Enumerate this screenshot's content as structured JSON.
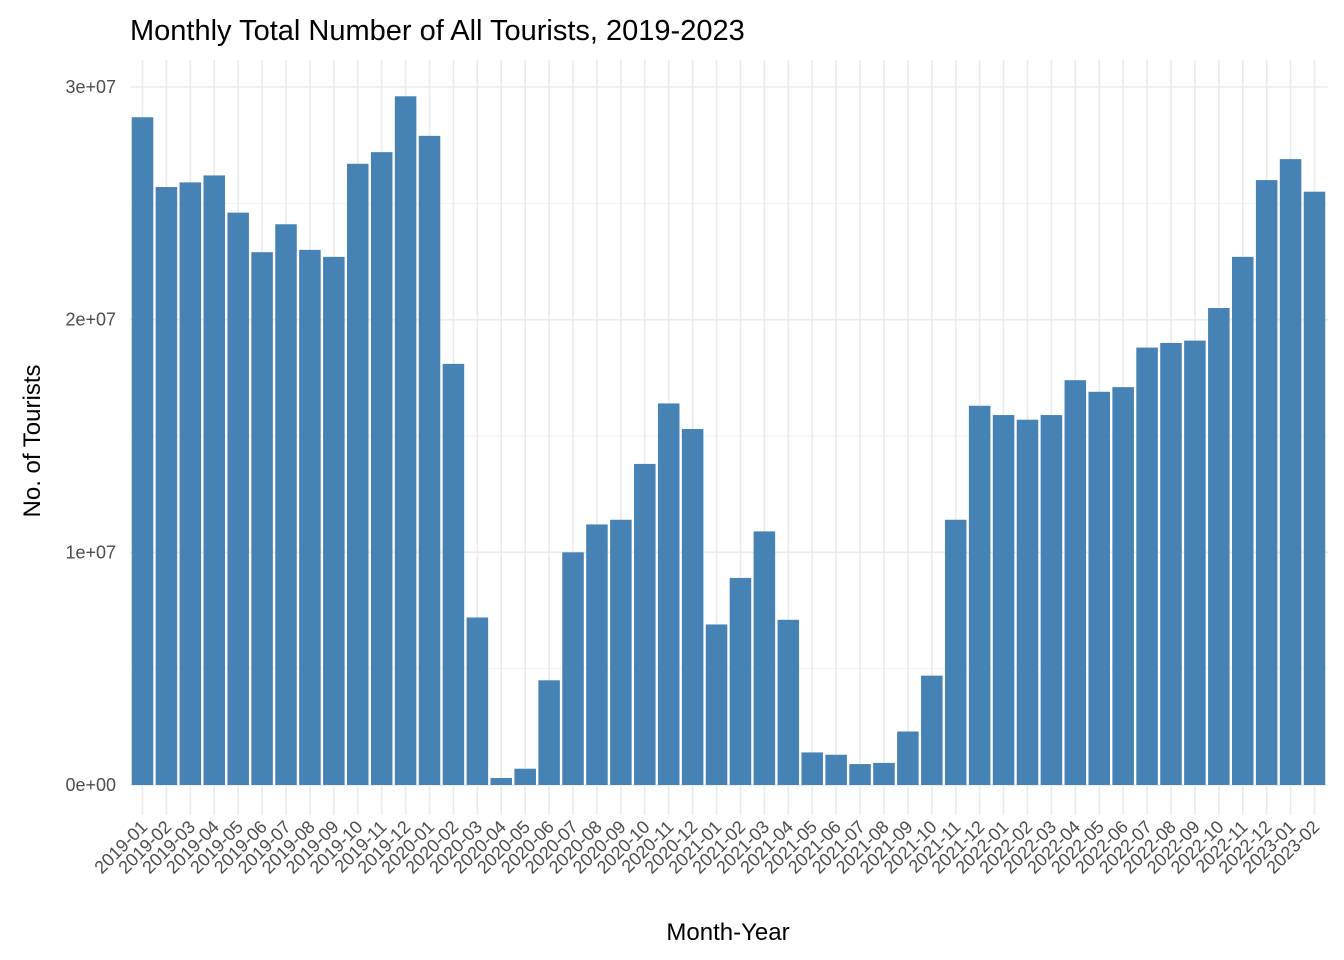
{
  "chart_data": {
    "type": "bar",
    "title": "Monthly Total Number of All Tourists, 2019-2023",
    "xlabel": "Month-Year",
    "ylabel": "No. of Tourists",
    "ylim": [
      0,
      30000000
    ],
    "y_ticks": [
      0,
      10000000,
      20000000,
      30000000
    ],
    "y_tick_labels": [
      "0e+00",
      "1e+07",
      "2e+07",
      "3e+07"
    ],
    "grid": true,
    "bar_color": "#4682B4",
    "categories": [
      "2019-01",
      "2019-02",
      "2019-03",
      "2019-04",
      "2019-05",
      "2019-06",
      "2019-07",
      "2019-08",
      "2019-09",
      "2019-10",
      "2019-11",
      "2019-12",
      "2020-01",
      "2020-02",
      "2020-03",
      "2020-04",
      "2020-05",
      "2020-06",
      "2020-07",
      "2020-08",
      "2020-09",
      "2020-10",
      "2020-11",
      "2020-12",
      "2021-01",
      "2021-02",
      "2021-03",
      "2021-04",
      "2021-05",
      "2021-06",
      "2021-07",
      "2021-08",
      "2021-09",
      "2021-10",
      "2021-11",
      "2021-12",
      "2022-01",
      "2022-02",
      "2022-03",
      "2022-04",
      "2022-05",
      "2022-06",
      "2022-07",
      "2022-08",
      "2022-09",
      "2022-10",
      "2022-11",
      "2022-12",
      "2023-01",
      "2023-02"
    ],
    "values": [
      28700000,
      25700000,
      25900000,
      26200000,
      24600000,
      22900000,
      24100000,
      23000000,
      22700000,
      26700000,
      27200000,
      29600000,
      27900000,
      18100000,
      7200000,
      300000,
      700000,
      4500000,
      10000000,
      11200000,
      11400000,
      13800000,
      16400000,
      15300000,
      6900000,
      8900000,
      10900000,
      7100000,
      1400000,
      1300000,
      900000,
      950000,
      2300000,
      4700000,
      11400000,
      16300000,
      15900000,
      15700000,
      15900000,
      17400000,
      16900000,
      17100000,
      18800000,
      19000000,
      19100000,
      20500000,
      22700000,
      26000000,
      26900000,
      25500000
    ]
  }
}
